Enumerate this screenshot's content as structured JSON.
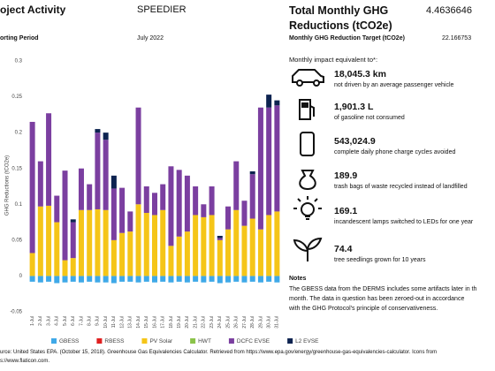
{
  "header": {
    "project_label": "oject Activity",
    "project": "SPEEDIER",
    "period_label": "orting Period",
    "period": "July 2022",
    "total_label": "Total Monthly GHG Reductions (tCO2e)",
    "total": "4.4636646",
    "target_label": "Monthly GHG Reduction Target (tCO2e)",
    "target": "22.166753"
  },
  "chart_data": {
    "type": "bar",
    "stacked": true,
    "y_label": "GHG Reductions (tCO2e)",
    "categories": [
      "1-Jul",
      "2-Jul",
      "3-Jul",
      "4-Jul",
      "5-Jul",
      "6-Jul",
      "7-Jul",
      "8-Jul",
      "9-Jul",
      "10-Jul",
      "11-Jul",
      "12-Jul",
      "13-Jul",
      "14-Jul",
      "15-Jul",
      "16-Jul",
      "17-Jul",
      "18-Jul",
      "19-Jul",
      "20-Jul",
      "21-Jul",
      "22-Jul",
      "23-Jul",
      "24-Jul",
      "25-Jul",
      "26-Jul",
      "27-Jul",
      "28-Jul",
      "29-Jul",
      "30-Jul",
      "31-Jul"
    ],
    "series": [
      {
        "name": "GBESS",
        "color": "#3fa9e8",
        "values": [
          -0.008,
          -0.009,
          -0.008,
          -0.01,
          -0.009,
          -0.008,
          -0.009,
          -0.008,
          -0.009,
          -0.009,
          -0.01,
          -0.008,
          -0.008,
          -0.009,
          -0.008,
          -0.009,
          -0.008,
          -0.009,
          -0.008,
          -0.009,
          -0.008,
          -0.009,
          -0.008,
          -0.01,
          -0.009,
          -0.008,
          -0.009,
          -0.008,
          -0.009,
          -0.008,
          -0.009
        ]
      },
      {
        "name": "RBESS",
        "color": "#e02020",
        "values": [
          0,
          0,
          0,
          0,
          0,
          0,
          0,
          0,
          0,
          0,
          0,
          0,
          0,
          0,
          0,
          0,
          0,
          0,
          0,
          0,
          0,
          0,
          0,
          0,
          0,
          0,
          0,
          0,
          0,
          0,
          0
        ]
      },
      {
        "name": "PV Solar",
        "color": "#f5c518",
        "values": [
          0.032,
          0.097,
          0.098,
          0.075,
          0.022,
          0.025,
          0.092,
          0.092,
          0.093,
          0.092,
          0.05,
          0.06,
          0.062,
          0.1,
          0.088,
          0.085,
          0.092,
          0.042,
          0.055,
          0.062,
          0.085,
          0.082,
          0.085,
          0.05,
          0.065,
          0.092,
          0.07,
          0.08,
          0.065,
          0.085,
          0.09
        ]
      },
      {
        "name": "HWT",
        "color": "#8bc34a",
        "values": [
          0,
          0,
          0,
          0,
          0,
          0,
          0,
          0,
          0,
          0,
          0,
          0,
          0,
          0,
          0,
          0,
          0,
          0,
          0,
          0,
          0,
          0,
          0,
          0,
          0,
          0,
          0,
          0,
          0,
          0,
          0
        ]
      },
      {
        "name": "DCFC EVSE",
        "color": "#7b3fa0",
        "values": [
          0.183,
          0.063,
          0.129,
          0.037,
          0.125,
          0.05,
          0.058,
          0.036,
          0.107,
          0.098,
          0.072,
          0.063,
          0.028,
          0.135,
          0.037,
          0.031,
          0.036,
          0.111,
          0.093,
          0.078,
          0.04,
          0.018,
          0.04,
          0.003,
          0.032,
          0.068,
          0.035,
          0.062,
          0.17,
          0.15,
          0.148
        ]
      },
      {
        "name": "L2 EVSE",
        "color": "#0d2350",
        "values": [
          0,
          0,
          0,
          0,
          0,
          0.004,
          0,
          0,
          0.005,
          0.01,
          0.018,
          0,
          0,
          0,
          0,
          0,
          0,
          0,
          0,
          0,
          0,
          0,
          0,
          0.003,
          0,
          0,
          0,
          0.004,
          0,
          0.018,
          0.007
        ]
      }
    ],
    "ylim": [
      -0.05,
      0.3
    ],
    "yticks": [
      -0.05,
      0,
      0.05,
      0.1,
      0.15,
      0.2,
      0.25,
      0.3
    ],
    "grid": false,
    "legend": "bottom"
  },
  "impact": {
    "title": "Monthly impact equivalent to*:",
    "items": [
      {
        "value": "18,045.3 km",
        "text": "not driven by an average passenger vehicle"
      },
      {
        "value": "1,901.3 L",
        "text": "of gasoline not consumed"
      },
      {
        "value": "543,024.9",
        "text": "complete daily phone charge cycles avoided"
      },
      {
        "value": "189.9",
        "text": "trash bags of waste recycled instead of landfilled"
      },
      {
        "value": "169.1",
        "text": "incandescent lamps switched to LEDs for one year"
      },
      {
        "value": "74.4",
        "text": "tree seedlings grown for 10 years"
      }
    ]
  },
  "notes": {
    "title": "Notes",
    "lines": [
      "The GBESS data from the DERMS includes some artifacts later in th",
      "month. The data in question has been zeroed-out in accordance",
      "with the GHG Protocol's principle of conservativeness."
    ]
  },
  "source": {
    "lines": [
      "urce: United States EPA. (October 15, 2018). Greenhouse Gas Equivalencies Calculator. Retrieved from https://www.epa.gov/energy/greenhouse-gas-equivalencies-calculator. Icons from",
      "s://www.flaticon.com."
    ]
  }
}
